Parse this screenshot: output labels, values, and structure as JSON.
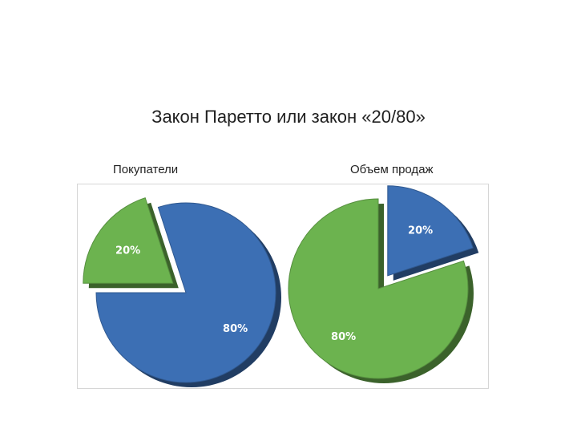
{
  "slide": {
    "title": "Закон Паретто или закон «20/80»"
  },
  "chart_data": [
    {
      "type": "pie",
      "title": "Покупатели",
      "slices": [
        {
          "label": "20%",
          "value": 20,
          "color": "#6cb34f",
          "exploded": true
        },
        {
          "label": "80%",
          "value": 80,
          "color": "#3c6fb4",
          "exploded": false
        }
      ]
    },
    {
      "type": "pie",
      "title": "Объем продаж",
      "slices": [
        {
          "label": "20%",
          "value": 20,
          "color": "#3c6fb4",
          "exploded": true
        },
        {
          "label": "80%",
          "value": 80,
          "color": "#6cb34f",
          "exploded": false
        }
      ]
    }
  ]
}
